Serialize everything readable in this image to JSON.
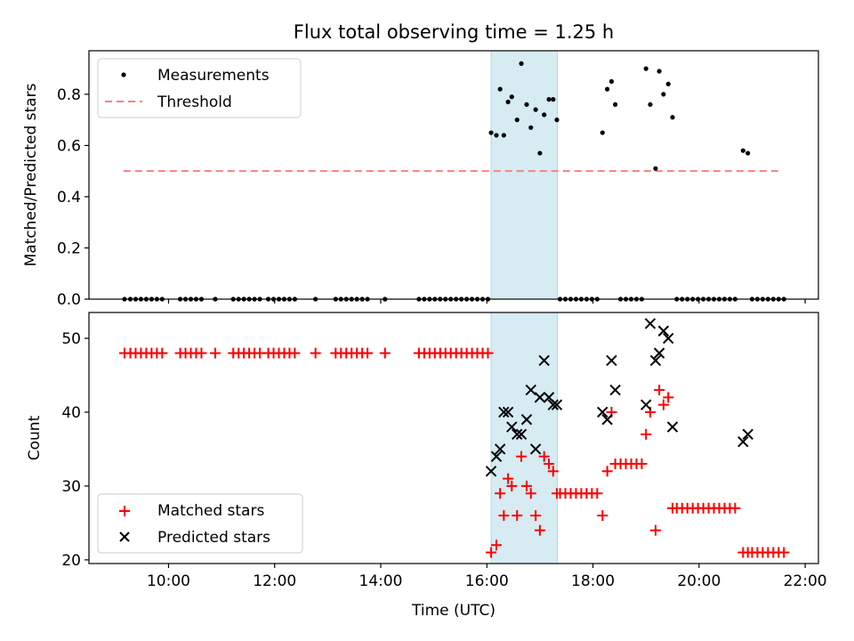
{
  "title": "Flux total observing time = 1.25 h",
  "colors": {
    "threshold": "#ff7f7f",
    "shade": "#add8e6",
    "matched": "#ff0000",
    "predicted": "#000000",
    "measurement": "#000000"
  },
  "chart_data": [
    {
      "type": "scatter",
      "ylabel": "Matched/Predicted stars",
      "xlabel": "",
      "xlim": [
        8.5,
        22.25
      ],
      "ylim": [
        0,
        0.97
      ],
      "yticks": [
        "0.0",
        "0.2",
        "0.4",
        "0.6",
        "0.8"
      ],
      "ytick_values": [
        0,
        0.2,
        0.4,
        0.6,
        0.8
      ],
      "grid": false,
      "legend_position": "upper left",
      "legend": [
        "Measurements",
        "Threshold"
      ],
      "shaded_region": {
        "x": [
          16.08,
          17.33
        ]
      },
      "threshold": {
        "name": "Threshold",
        "x": [
          9.15,
          21.55
        ],
        "y": 0.5
      },
      "series": [
        {
          "name": "Measurements",
          "points": [
            [
              9.17,
              0
            ],
            [
              9.28,
              0
            ],
            [
              9.38,
              0
            ],
            [
              9.48,
              0
            ],
            [
              9.58,
              0
            ],
            [
              9.68,
              0
            ],
            [
              9.78,
              0
            ],
            [
              9.88,
              0
            ],
            [
              10.22,
              0
            ],
            [
              10.32,
              0
            ],
            [
              10.42,
              0
            ],
            [
              10.52,
              0
            ],
            [
              10.62,
              0
            ],
            [
              10.88,
              0
            ],
            [
              11.22,
              0
            ],
            [
              11.32,
              0
            ],
            [
              11.42,
              0
            ],
            [
              11.52,
              0
            ],
            [
              11.62,
              0
            ],
            [
              11.72,
              0
            ],
            [
              11.88,
              0
            ],
            [
              11.98,
              0
            ],
            [
              12.08,
              0
            ],
            [
              12.18,
              0
            ],
            [
              12.28,
              0
            ],
            [
              12.38,
              0
            ],
            [
              12.77,
              0
            ],
            [
              13.15,
              0
            ],
            [
              13.25,
              0
            ],
            [
              13.35,
              0
            ],
            [
              13.45,
              0
            ],
            [
              13.55,
              0
            ],
            [
              13.65,
              0
            ],
            [
              13.75,
              0
            ],
            [
              14.08,
              0
            ],
            [
              14.72,
              0
            ],
            [
              14.82,
              0
            ],
            [
              14.92,
              0
            ],
            [
              15.02,
              0
            ],
            [
              15.12,
              0
            ],
            [
              15.22,
              0
            ],
            [
              15.32,
              0
            ],
            [
              15.42,
              0
            ],
            [
              15.52,
              0
            ],
            [
              15.62,
              0
            ],
            [
              15.72,
              0
            ],
            [
              15.82,
              0
            ],
            [
              15.92,
              0
            ],
            [
              16.02,
              0
            ],
            [
              16.08,
              0.65
            ],
            [
              16.18,
              0.64
            ],
            [
              16.25,
              0.82
            ],
            [
              16.32,
              0.64
            ],
            [
              16.4,
              0.77
            ],
            [
              16.47,
              0.79
            ],
            [
              16.57,
              0.7
            ],
            [
              16.65,
              0.92
            ],
            [
              16.75,
              0.76
            ],
            [
              16.83,
              0.67
            ],
            [
              16.92,
              0.74
            ],
            [
              17.0,
              0.57
            ],
            [
              17.08,
              0.72
            ],
            [
              17.17,
              0.78
            ],
            [
              17.25,
              0.78
            ],
            [
              17.32,
              0.7
            ],
            [
              17.38,
              0
            ],
            [
              17.48,
              0
            ],
            [
              17.58,
              0
            ],
            [
              17.68,
              0
            ],
            [
              17.78,
              0
            ],
            [
              17.88,
              0
            ],
            [
              17.98,
              0
            ],
            [
              18.08,
              0
            ],
            [
              18.18,
              0.65
            ],
            [
              18.27,
              0.82
            ],
            [
              18.35,
              0.85
            ],
            [
              18.42,
              0.76
            ],
            [
              18.52,
              0
            ],
            [
              18.62,
              0
            ],
            [
              18.72,
              0
            ],
            [
              18.82,
              0
            ],
            [
              18.92,
              0
            ],
            [
              19.0,
              0.9
            ],
            [
              19.08,
              0.76
            ],
            [
              19.18,
              0.51
            ],
            [
              19.25,
              0.89
            ],
            [
              19.33,
              0.8
            ],
            [
              19.42,
              0.84
            ],
            [
              19.5,
              0.71
            ],
            [
              19.58,
              0
            ],
            [
              19.68,
              0
            ],
            [
              19.78,
              0
            ],
            [
              19.88,
              0
            ],
            [
              19.98,
              0
            ],
            [
              20.08,
              0
            ],
            [
              20.18,
              0
            ],
            [
              20.28,
              0
            ],
            [
              20.38,
              0
            ],
            [
              20.48,
              0
            ],
            [
              20.58,
              0
            ],
            [
              20.68,
              0
            ],
            [
              20.83,
              0.58
            ],
            [
              20.92,
              0.57
            ],
            [
              21.0,
              0
            ],
            [
              21.1,
              0
            ],
            [
              21.2,
              0
            ],
            [
              21.3,
              0
            ],
            [
              21.4,
              0
            ],
            [
              21.5,
              0
            ],
            [
              21.6,
              0
            ]
          ]
        }
      ]
    },
    {
      "type": "scatter",
      "xlabel": "Time (UTC)",
      "ylabel": "Count",
      "xlim": [
        8.5,
        22.25
      ],
      "ylim": [
        19.5,
        53.5
      ],
      "xticks": [
        "10:00",
        "12:00",
        "14:00",
        "16:00",
        "18:00",
        "20:00",
        "22:00"
      ],
      "xtick_values": [
        10,
        12,
        14,
        16,
        18,
        20,
        22
      ],
      "yticks": [
        "20",
        "30",
        "40",
        "50"
      ],
      "ytick_values": [
        20,
        30,
        40,
        50
      ],
      "grid": false,
      "legend_position": "lower left",
      "legend": [
        "Matched stars",
        "Predicted stars"
      ],
      "shaded_region": {
        "x": [
          16.08,
          17.33
        ]
      },
      "series": [
        {
          "name": "Matched stars",
          "marker": "+",
          "points": [
            [
              9.17,
              48
            ],
            [
              9.28,
              48
            ],
            [
              9.38,
              48
            ],
            [
              9.48,
              48
            ],
            [
              9.58,
              48
            ],
            [
              9.68,
              48
            ],
            [
              9.78,
              48
            ],
            [
              9.88,
              48
            ],
            [
              10.22,
              48
            ],
            [
              10.32,
              48
            ],
            [
              10.42,
              48
            ],
            [
              10.52,
              48
            ],
            [
              10.62,
              48
            ],
            [
              10.88,
              48
            ],
            [
              11.22,
              48
            ],
            [
              11.32,
              48
            ],
            [
              11.42,
              48
            ],
            [
              11.52,
              48
            ],
            [
              11.62,
              48
            ],
            [
              11.72,
              48
            ],
            [
              11.88,
              48
            ],
            [
              11.98,
              48
            ],
            [
              12.08,
              48
            ],
            [
              12.18,
              48
            ],
            [
              12.28,
              48
            ],
            [
              12.38,
              48
            ],
            [
              12.77,
              48
            ],
            [
              13.15,
              48
            ],
            [
              13.25,
              48
            ],
            [
              13.35,
              48
            ],
            [
              13.45,
              48
            ],
            [
              13.55,
              48
            ],
            [
              13.65,
              48
            ],
            [
              13.75,
              48
            ],
            [
              14.08,
              48
            ],
            [
              14.72,
              48
            ],
            [
              14.82,
              48
            ],
            [
              14.92,
              48
            ],
            [
              15.02,
              48
            ],
            [
              15.12,
              48
            ],
            [
              15.22,
              48
            ],
            [
              15.32,
              48
            ],
            [
              15.42,
              48
            ],
            [
              15.52,
              48
            ],
            [
              15.62,
              48
            ],
            [
              15.72,
              48
            ],
            [
              15.82,
              48
            ],
            [
              15.92,
              48
            ],
            [
              16.02,
              48
            ],
            [
              16.08,
              21
            ],
            [
              16.18,
              22
            ],
            [
              16.25,
              29
            ],
            [
              16.32,
              26
            ],
            [
              16.4,
              31
            ],
            [
              16.47,
              30
            ],
            [
              16.57,
              26
            ],
            [
              16.65,
              34
            ],
            [
              16.75,
              30
            ],
            [
              16.83,
              29
            ],
            [
              16.92,
              26
            ],
            [
              17.0,
              24
            ],
            [
              17.08,
              34
            ],
            [
              17.17,
              33
            ],
            [
              17.25,
              32
            ],
            [
              17.32,
              29
            ],
            [
              17.38,
              29
            ],
            [
              17.48,
              29
            ],
            [
              17.58,
              29
            ],
            [
              17.68,
              29
            ],
            [
              17.78,
              29
            ],
            [
              17.88,
              29
            ],
            [
              17.98,
              29
            ],
            [
              18.08,
              29
            ],
            [
              18.18,
              26
            ],
            [
              18.27,
              32
            ],
            [
              18.35,
              40
            ],
            [
              18.42,
              33
            ],
            [
              18.52,
              33
            ],
            [
              18.62,
              33
            ],
            [
              18.72,
              33
            ],
            [
              18.82,
              33
            ],
            [
              18.92,
              33
            ],
            [
              19.0,
              37
            ],
            [
              19.08,
              40
            ],
            [
              19.18,
              24
            ],
            [
              19.25,
              43
            ],
            [
              19.33,
              41
            ],
            [
              19.42,
              42
            ],
            [
              19.5,
              27
            ],
            [
              19.58,
              27
            ],
            [
              19.68,
              27
            ],
            [
              19.78,
              27
            ],
            [
              19.88,
              27
            ],
            [
              19.98,
              27
            ],
            [
              20.08,
              27
            ],
            [
              20.18,
              27
            ],
            [
              20.28,
              27
            ],
            [
              20.38,
              27
            ],
            [
              20.48,
              27
            ],
            [
              20.58,
              27
            ],
            [
              20.68,
              27
            ],
            [
              20.83,
              21
            ],
            [
              20.92,
              21
            ],
            [
              21.0,
              21
            ],
            [
              21.1,
              21
            ],
            [
              21.2,
              21
            ],
            [
              21.3,
              21
            ],
            [
              21.4,
              21
            ],
            [
              21.5,
              21
            ],
            [
              21.6,
              21
            ]
          ]
        },
        {
          "name": "Predicted stars",
          "marker": "x",
          "points": [
            [
              16.08,
              32
            ],
            [
              16.18,
              34
            ],
            [
              16.25,
              35
            ],
            [
              16.32,
              40
            ],
            [
              16.4,
              40
            ],
            [
              16.47,
              38
            ],
            [
              16.57,
              37
            ],
            [
              16.65,
              37
            ],
            [
              16.75,
              39
            ],
            [
              16.83,
              43
            ],
            [
              16.92,
              35
            ],
            [
              17.0,
              42
            ],
            [
              17.08,
              47
            ],
            [
              17.17,
              42
            ],
            [
              17.25,
              41
            ],
            [
              17.32,
              41
            ],
            [
              18.18,
              40
            ],
            [
              18.27,
              39
            ],
            [
              18.35,
              47
            ],
            [
              18.42,
              43
            ],
            [
              19.0,
              41
            ],
            [
              19.08,
              52
            ],
            [
              19.18,
              47
            ],
            [
              19.25,
              48
            ],
            [
              19.33,
              51
            ],
            [
              19.42,
              50
            ],
            [
              19.5,
              38
            ],
            [
              20.83,
              36
            ],
            [
              20.92,
              37
            ]
          ]
        }
      ]
    }
  ]
}
